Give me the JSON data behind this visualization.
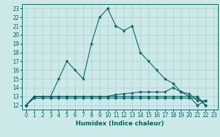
{
  "xlabel": "Humidex (Indice chaleur)",
  "bg_color": "#cde8e8",
  "grid_color": "#aacfcf",
  "line_color": "#006060",
  "xlim": [
    -0.5,
    23.5
  ],
  "ylim": [
    11.5,
    23.5
  ],
  "xticks": [
    0,
    1,
    2,
    3,
    4,
    5,
    6,
    7,
    8,
    9,
    10,
    11,
    12,
    13,
    14,
    15,
    16,
    17,
    18,
    19,
    20,
    21,
    22,
    23
  ],
  "yticks": [
    12,
    13,
    14,
    15,
    16,
    17,
    18,
    19,
    20,
    21,
    22,
    23
  ],
  "series": [
    {
      "x": [
        0,
        1,
        2,
        3,
        4,
        5,
        6,
        7,
        8,
        9,
        10,
        11,
        12,
        13,
        14,
        15,
        16,
        17,
        18,
        19,
        20,
        21,
        22
      ],
      "y": [
        12,
        13,
        13,
        13,
        15,
        17,
        16,
        15,
        19,
        22,
        23,
        21,
        20.5,
        21,
        18,
        17,
        16,
        15,
        14.5,
        13.5,
        13,
        12,
        12.5
      ]
    },
    {
      "x": [
        0,
        1,
        2,
        3,
        4,
        5,
        6,
        7,
        8,
        9,
        10,
        11,
        12,
        13,
        14,
        15,
        16,
        17,
        18,
        19,
        20,
        21,
        22
      ],
      "y": [
        12,
        12.8,
        12.8,
        12.8,
        12.8,
        12.8,
        12.8,
        12.8,
        12.8,
        12.8,
        12.8,
        12.8,
        12.8,
        12.8,
        12.8,
        12.8,
        12.8,
        12.8,
        12.8,
        12.8,
        12.8,
        12.8,
        12
      ]
    },
    {
      "x": [
        0,
        1,
        2,
        3,
        4,
        5,
        6,
        7,
        8,
        9,
        10,
        11,
        12,
        13,
        14,
        15,
        16,
        17,
        18,
        19,
        20,
        21,
        22
      ],
      "y": [
        12,
        13,
        13,
        13,
        13,
        13,
        13,
        13,
        13,
        13,
        13,
        13,
        13,
        13,
        13,
        13,
        13,
        13,
        13,
        13,
        13,
        13,
        12
      ]
    },
    {
      "x": [
        0,
        1,
        2,
        3,
        4,
        5,
        6,
        7,
        8,
        9,
        10,
        11,
        12,
        13,
        14,
        15,
        16,
        17,
        18,
        19,
        20,
        21,
        22
      ],
      "y": [
        12,
        13,
        13,
        13,
        13,
        13,
        13,
        13,
        13,
        13,
        13,
        13.2,
        13.3,
        13.4,
        13.5,
        13.5,
        13.5,
        13.5,
        14,
        13.5,
        13.3,
        12.5,
        12.5
      ]
    }
  ]
}
